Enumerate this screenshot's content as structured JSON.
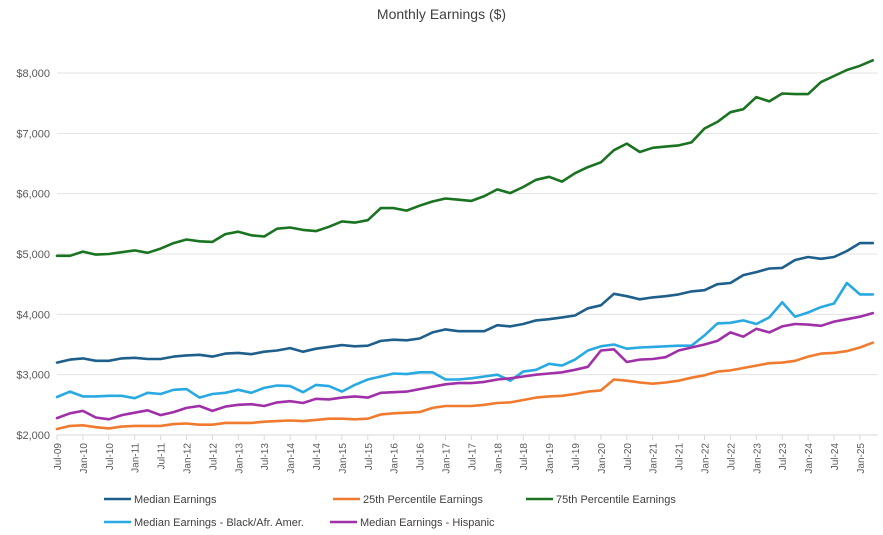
{
  "chart_data": {
    "type": "line",
    "title": "Monthly Earnings ($)",
    "xlabel": "",
    "ylabel": "",
    "ylim": [
      2000,
      8500
    ],
    "yticks": [
      2000,
      3000,
      4000,
      5000,
      6000,
      7000,
      8000
    ],
    "ytick_labels": [
      "$2,000",
      "$3,000",
      "$4,000",
      "$5,000",
      "$6,000",
      "$7,000",
      "$8,000"
    ],
    "grid": true,
    "legend_position": "bottom",
    "frequency": "quarterly",
    "x_start": "Jul-09",
    "x_tick_labels": [
      "Jul-09",
      "Jan-10",
      "Jul-10",
      "Jan-11",
      "Jul-11",
      "Jan-12",
      "Jul-12",
      "Jan-13",
      "Jul-13",
      "Jan-14",
      "Jul-14",
      "Jan-15",
      "Jul-15",
      "Jan-16",
      "Jul-16",
      "Jan-17",
      "Jul-17",
      "Jan-18",
      "Jul-18",
      "Jan-19",
      "Jul-19",
      "Jan-20",
      "Jul-20",
      "Jan-21",
      "Jul-21",
      "Jan-22",
      "Jul-22",
      "Jan-23",
      "Jul-23",
      "Jan-24",
      "Jul-24",
      "Jan-25"
    ],
    "series": [
      {
        "name": "Median Earnings",
        "color": "#1f5f8b",
        "values": [
          3200,
          3250,
          3270,
          3230,
          3230,
          3270,
          3280,
          3260,
          3260,
          3300,
          3320,
          3330,
          3300,
          3350,
          3360,
          3340,
          3380,
          3400,
          3440,
          3380,
          3430,
          3460,
          3490,
          3470,
          3480,
          3560,
          3580,
          3570,
          3600,
          3700,
          3750,
          3720,
          3720,
          3720,
          3820,
          3800,
          3840,
          3900,
          3920,
          3950,
          3980,
          4100,
          4150,
          4340,
          4300,
          4250,
          4280,
          4300,
          4330,
          4380,
          4400,
          4500,
          4520,
          4650,
          4700,
          4760,
          4770,
          4900,
          4950,
          4920,
          4950,
          5050,
          5180,
          5180
        ]
      },
      {
        "name": "25th Percentile Earnings",
        "color": "#f07b2f",
        "values": [
          2100,
          2150,
          2160,
          2130,
          2110,
          2140,
          2150,
          2150,
          2150,
          2180,
          2190,
          2170,
          2170,
          2200,
          2200,
          2200,
          2220,
          2230,
          2240,
          2230,
          2250,
          2270,
          2270,
          2260,
          2270,
          2340,
          2360,
          2370,
          2380,
          2450,
          2480,
          2480,
          2480,
          2500,
          2530,
          2540,
          2580,
          2620,
          2640,
          2650,
          2680,
          2720,
          2740,
          2920,
          2900,
          2870,
          2850,
          2870,
          2900,
          2950,
          2990,
          3050,
          3070,
          3110,
          3150,
          3190,
          3200,
          3230,
          3300,
          3350,
          3360,
          3390,
          3450,
          3530
        ]
      },
      {
        "name": "75th Percentile Earnings",
        "color": "#1a7320",
        "values": [
          4970,
          4970,
          5040,
          4990,
          5000,
          5030,
          5060,
          5020,
          5090,
          5180,
          5240,
          5210,
          5200,
          5330,
          5370,
          5310,
          5290,
          5420,
          5440,
          5400,
          5380,
          5450,
          5540,
          5520,
          5560,
          5760,
          5760,
          5720,
          5800,
          5870,
          5920,
          5900,
          5880,
          5960,
          6070,
          6010,
          6110,
          6230,
          6280,
          6200,
          6340,
          6440,
          6520,
          6720,
          6830,
          6690,
          6760,
          6780,
          6800,
          6850,
          7080,
          7190,
          7350,
          7400,
          7600,
          7530,
          7660,
          7650,
          7650,
          7850,
          7950,
          8050,
          8120,
          8210
        ]
      },
      {
        "name": "Median Earnings - Black/Afr. Amer.",
        "color": "#29a9e1",
        "values": [
          2630,
          2720,
          2640,
          2640,
          2650,
          2650,
          2610,
          2700,
          2680,
          2750,
          2760,
          2620,
          2680,
          2700,
          2750,
          2700,
          2780,
          2820,
          2810,
          2710,
          2830,
          2810,
          2720,
          2830,
          2920,
          2970,
          3020,
          3010,
          3040,
          3040,
          2920,
          2920,
          2940,
          2970,
          3000,
          2900,
          3050,
          3080,
          3180,
          3150,
          3250,
          3400,
          3470,
          3500,
          3430,
          3450,
          3460,
          3470,
          3480,
          3480,
          3650,
          3850,
          3860,
          3900,
          3840,
          3950,
          4200,
          3960,
          4030,
          4120,
          4180,
          4520,
          4330,
          4330
        ]
      },
      {
        "name": "Median Earnings - Hispanic",
        "color": "#a030a8",
        "values": [
          2280,
          2360,
          2400,
          2290,
          2260,
          2330,
          2370,
          2410,
          2330,
          2380,
          2450,
          2480,
          2400,
          2470,
          2500,
          2510,
          2480,
          2540,
          2560,
          2530,
          2600,
          2590,
          2620,
          2640,
          2620,
          2700,
          2710,
          2720,
          2760,
          2800,
          2840,
          2860,
          2860,
          2880,
          2920,
          2940,
          2970,
          3000,
          3020,
          3040,
          3080,
          3130,
          3400,
          3420,
          3210,
          3250,
          3260,
          3290,
          3400,
          3450,
          3500,
          3560,
          3700,
          3630,
          3760,
          3700,
          3800,
          3840,
          3830,
          3810,
          3880,
          3920,
          3960,
          4020
        ]
      }
    ]
  }
}
